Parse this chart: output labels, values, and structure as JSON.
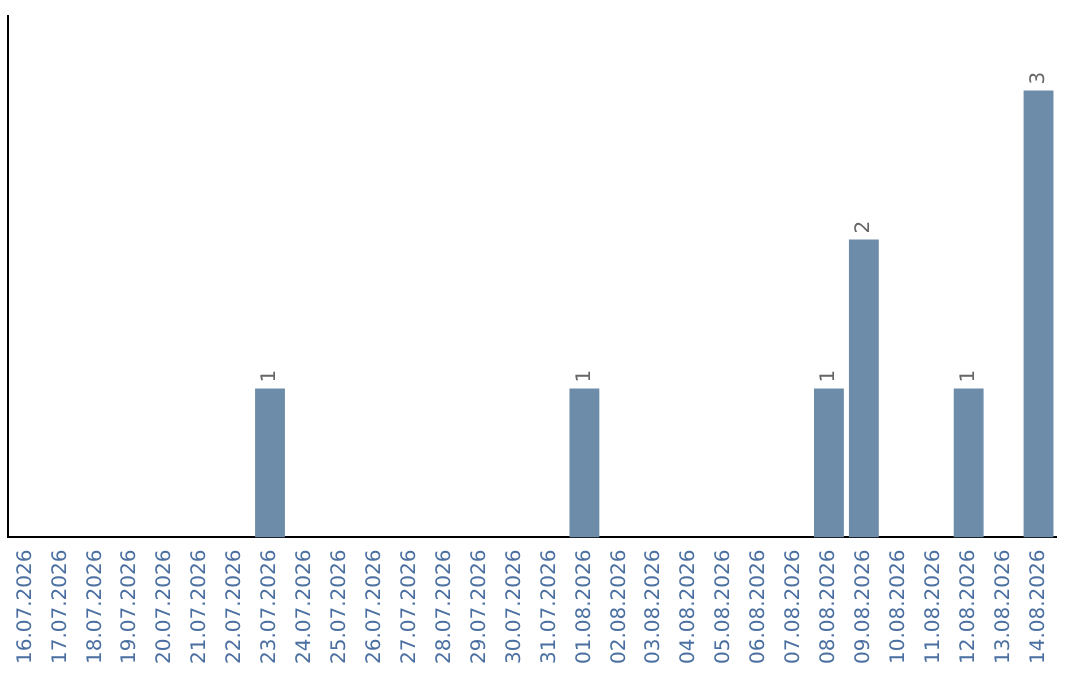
{
  "chart_data": {
    "type": "bar",
    "categories": [
      "16.07.2026",
      "17.07.2026",
      "18.07.2026",
      "19.07.2026",
      "20.07.2026",
      "21.07.2026",
      "22.07.2026",
      "23.07.2026",
      "24.07.2026",
      "25.07.2026",
      "26.07.2026",
      "27.07.2026",
      "28.07.2026",
      "29.07.2026",
      "30.07.2026",
      "31.07.2026",
      "01.08.2026",
      "02.08.2026",
      "03.08.2026",
      "04.08.2026",
      "05.08.2026",
      "06.08.2026",
      "07.08.2026",
      "08.08.2026",
      "09.08.2026",
      "10.08.2026",
      "11.08.2026",
      "12.08.2026",
      "13.08.2026",
      "14.08.2026"
    ],
    "values": [
      0,
      0,
      0,
      0,
      0,
      0,
      0,
      1,
      0,
      0,
      0,
      0,
      0,
      0,
      0,
      0,
      1,
      0,
      0,
      0,
      0,
      0,
      0,
      1,
      2,
      0,
      0,
      1,
      0,
      3
    ],
    "value_labels": [
      null,
      null,
      null,
      null,
      null,
      null,
      null,
      "1",
      null,
      null,
      null,
      null,
      null,
      null,
      null,
      null,
      "1",
      null,
      null,
      null,
      null,
      null,
      null,
      "1",
      "2",
      null,
      null,
      "1",
      null,
      "3"
    ],
    "color": "#6d8caa",
    "grid": false,
    "legend": false,
    "tick_labels": "x"
  }
}
